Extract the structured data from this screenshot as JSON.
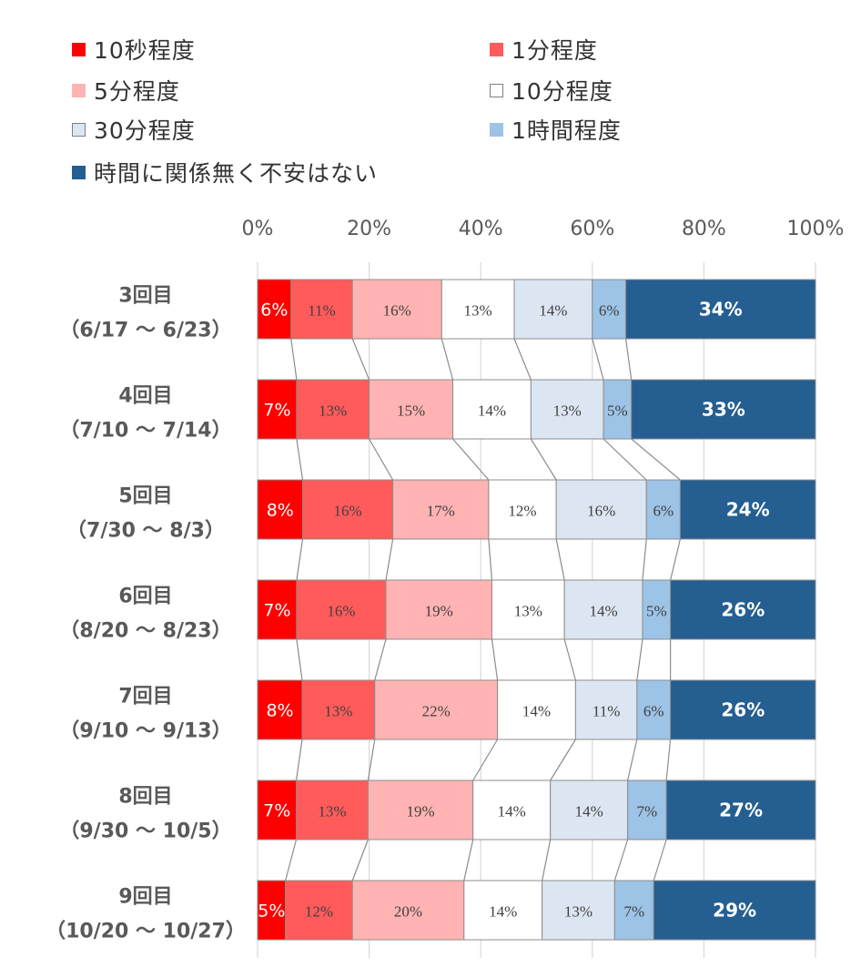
{
  "chart_data": {
    "type": "bar",
    "orientation": "horizontal",
    "stacked": "percent",
    "title": "",
    "xlabel": "",
    "ylabel": "",
    "xlim": [
      0,
      100
    ],
    "x_ticks": [
      "0%",
      "20%",
      "40%",
      "60%",
      "80%",
      "100%"
    ],
    "x_axis_position": "top",
    "grid": true,
    "legend_placement": "top",
    "categories": [
      {
        "line1": "3回目",
        "line2": "（6/17 ～ 6/23）"
      },
      {
        "line1": "4回目",
        "line2": "（7/10 ～ 7/14）"
      },
      {
        "line1": "5回目",
        "line2": "（7/30 ～ 8/3）"
      },
      {
        "line1": "6回目",
        "line2": "（8/20 ～ 8/23）"
      },
      {
        "line1": "7回目",
        "line2": "（9/10 ～ 9/13）"
      },
      {
        "line1": "8回目",
        "line2": "（9/30 ～ 10/5）"
      },
      {
        "line1": "9回目",
        "line2": "（10/20 ～ 10/27）"
      }
    ],
    "series": [
      {
        "name": "10秒程度",
        "color": "#ff0000",
        "label_color": "#ffffff",
        "values": [
          6,
          7,
          8,
          7,
          8,
          7,
          5
        ]
      },
      {
        "name": "1分程度",
        "color": "#ff5b5b",
        "label_color": "#404040",
        "values": [
          11,
          13,
          16,
          16,
          13,
          13,
          12
        ]
      },
      {
        "name": "5分程度",
        "color": "#ffb3b3",
        "label_color": "#404040",
        "values": [
          16,
          15,
          17,
          19,
          22,
          19,
          20
        ]
      },
      {
        "name": "10分程度",
        "color": "#ffffff",
        "label_color": "#404040",
        "values": [
          13,
          14,
          12,
          13,
          14,
          14,
          14
        ]
      },
      {
        "name": "30分程度",
        "color": "#dce6f2",
        "label_color": "#404040",
        "values": [
          14,
          13,
          16,
          14,
          11,
          14,
          13
        ]
      },
      {
        "name": "1時間程度",
        "color": "#9dc3e6",
        "label_color": "#404040",
        "values": [
          6,
          5,
          6,
          5,
          6,
          7,
          7
        ]
      },
      {
        "name": "時間に関係無く不安はない",
        "color": "#255e91",
        "label_color": "#ffffff",
        "values": [
          34,
          33,
          24,
          26,
          26,
          27,
          29
        ]
      }
    ]
  }
}
